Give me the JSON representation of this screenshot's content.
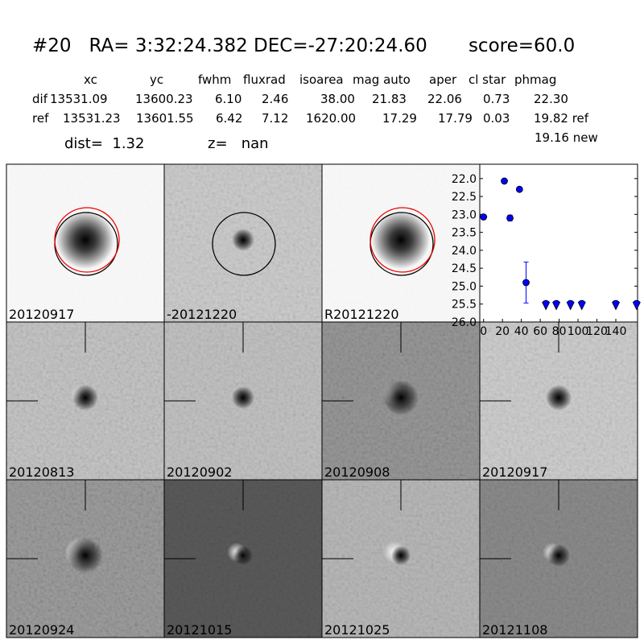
{
  "header": {
    "title": "#20   RA= 3:32:24.382 DEC=-27:20:24.60       score=60.0"
  },
  "table": {
    "columns": [
      "xc",
      "yc",
      "fwhm",
      "fluxrad",
      "isoarea",
      "mag auto",
      "aper",
      "cl star",
      "phmag"
    ],
    "rows": [
      [
        "dif",
        "13531.09",
        "13600.23",
        "6.10",
        "2.46",
        "38.00",
        "21.83",
        "22.06",
        "0.73",
        "22.30"
      ],
      [
        "ref",
        "13531.23",
        "13601.55",
        "6.42",
        "7.12",
        "1620.00",
        "17.29",
        "17.79",
        "0.03",
        "19.82 ref"
      ]
    ],
    "new_phmag": "19.16 new"
  },
  "info": {
    "dist": "dist=  1.32",
    "z": "z=   nan"
  },
  "panels": [
    {
      "label": "20120917",
      "color": "#000000"
    },
    {
      "label": "-20121220",
      "color": "#000000"
    },
    {
      "label": "R20121220",
      "color": "#000000"
    },
    {
      "label": "20120813",
      "color": "#000000"
    },
    {
      "label": "20120902",
      "color": "#000000"
    },
    {
      "label": "20120908",
      "color": "#000000"
    },
    {
      "label": "20120917",
      "color": "#ff0000"
    },
    {
      "label": "20120924",
      "color": "#000000"
    },
    {
      "label": "20121015",
      "color": "#000000"
    },
    {
      "label": "20121025",
      "color": "#000000"
    },
    {
      "label": "20121108",
      "color": "#000000"
    }
  ],
  "chart_data": {
    "type": "scatter",
    "xlim": [
      -4,
      163
    ],
    "xticks": [
      0,
      20,
      40,
      60,
      80,
      100,
      120,
      140
    ],
    "ylim": [
      26.0,
      21.6
    ],
    "yticks": [
      {
        "value": 22.0,
        "label": "22.0"
      },
      {
        "value": 22.5,
        "label": "22.5"
      },
      {
        "value": 23.0,
        "label": "23.0"
      },
      {
        "value": 23.5,
        "label": "23.5"
      },
      {
        "value": 24.0,
        "label": "24.0"
      },
      {
        "value": 24.5,
        "label": "24.5"
      },
      {
        "value": 25.0,
        "label": "25.0"
      },
      {
        "value": 25.5,
        "label": "25.5"
      },
      {
        "value": 26.0,
        "label": "26.0"
      }
    ],
    "series": [
      {
        "color": "#0000ff",
        "marker": "circle",
        "x": [
          0,
          22,
          28,
          38,
          45
        ],
        "values": [
          23.07,
          22.07,
          23.1,
          22.3,
          24.9
        ],
        "errors": [
          0.03,
          0.03,
          0.08,
          0.03,
          0.57
        ]
      },
      {
        "color": "#0000ff",
        "marker": "triangle_down",
        "x": [
          66,
          77,
          92,
          104,
          140,
          162
        ],
        "values": [
          25.52,
          25.52,
          25.52,
          25.52,
          25.52,
          25.52
        ]
      }
    ]
  }
}
